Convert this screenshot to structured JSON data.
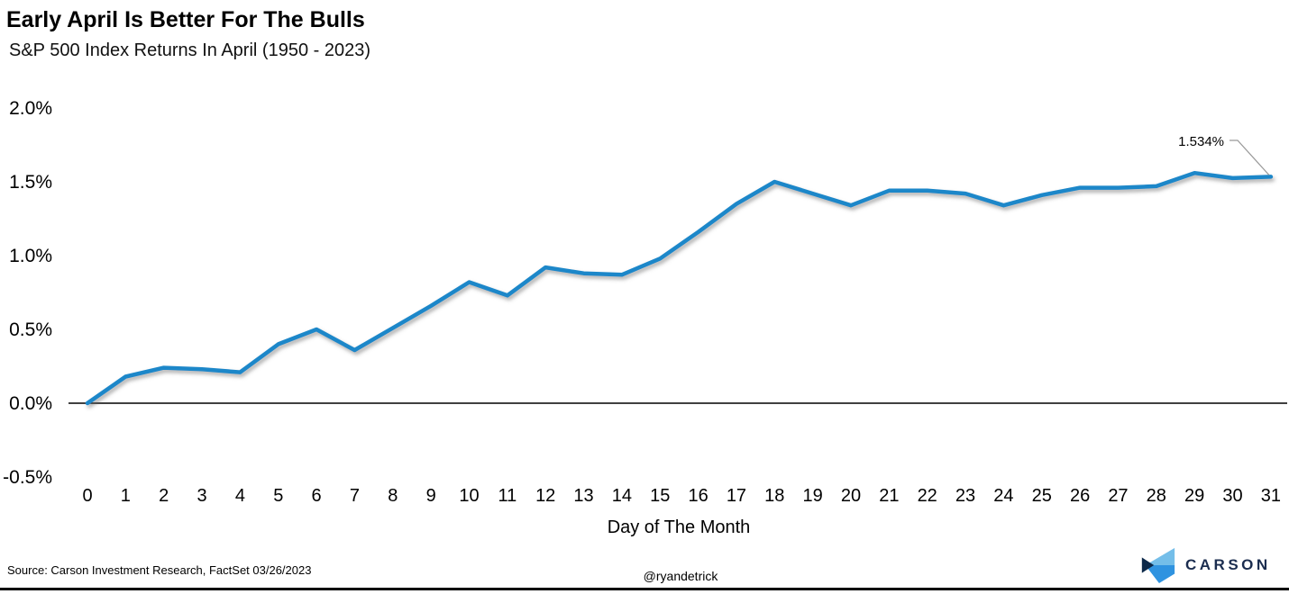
{
  "header": {
    "title": "Early April Is Better For The Bulls",
    "subtitle": "S&P 500 Index Returns In April (1950 - 2023)"
  },
  "chart_data": {
    "type": "line",
    "title": "Early April Is Better For The Bulls",
    "subtitle": "S&P 500 Index Returns In April (1950 - 2023)",
    "x": [
      0,
      1,
      2,
      3,
      4,
      5,
      6,
      7,
      8,
      9,
      10,
      11,
      12,
      13,
      14,
      15,
      16,
      17,
      18,
      19,
      20,
      21,
      22,
      23,
      24,
      25,
      26,
      27,
      28,
      29,
      30,
      31
    ],
    "values": [
      0.0,
      0.18,
      0.24,
      0.23,
      0.21,
      0.4,
      0.5,
      0.36,
      0.51,
      0.66,
      0.82,
      0.73,
      0.92,
      0.88,
      0.87,
      0.98,
      1.16,
      1.35,
      1.5,
      1.42,
      1.34,
      1.44,
      1.44,
      1.42,
      1.34,
      1.41,
      1.46,
      1.46,
      1.47,
      1.56,
      1.525,
      1.534
    ],
    "xlabel": "Day of The Month",
    "ylabel": "",
    "ylim": [
      -0.5,
      2.0
    ],
    "y_ticks": [
      {
        "label": "2.0%",
        "value": 2.0
      },
      {
        "label": "1.5%",
        "value": 1.5
      },
      {
        "label": "1.0%",
        "value": 1.0
      },
      {
        "label": "0.5%",
        "value": 0.5
      },
      {
        "label": "0.0%",
        "value": 0.0
      },
      {
        "label": "-0.5%",
        "value": -0.5
      }
    ],
    "grid": false,
    "legend_position": "none",
    "line_color": "#1d87c9",
    "annotation": {
      "text": "1.534%",
      "x": 31,
      "y": 1.534
    }
  },
  "footer": {
    "source": "Source: Carson Investment Research, FactSet 03/26/2023",
    "handle": "@ryandetrick",
    "logo_text": "CARSON"
  },
  "colors": {
    "line_blue": "#1d87c9",
    "axis_black": "#000000",
    "annotation_connector": "#999999",
    "logo_light_blue": "#74bee9",
    "logo_mid_blue": "#2f93e0",
    "logo_navy": "#0c2849",
    "logo_text_navy": "#1b2d4f"
  }
}
